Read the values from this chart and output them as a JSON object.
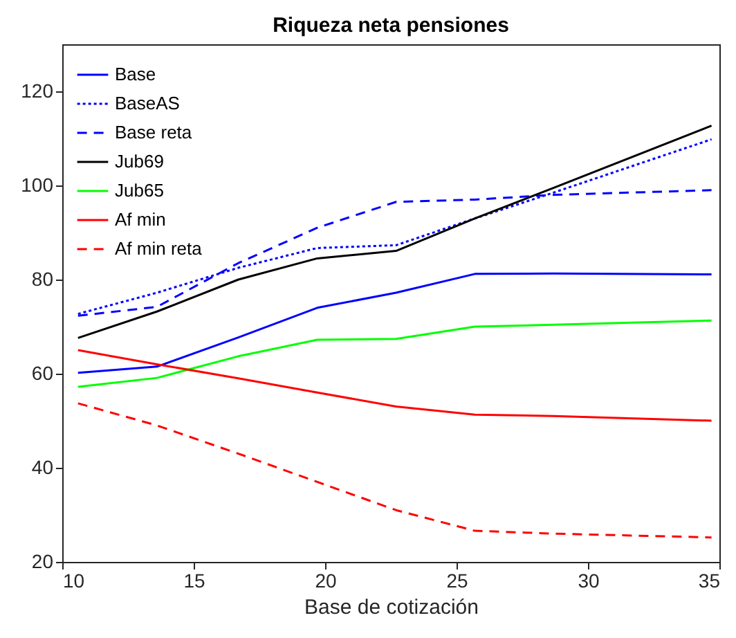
{
  "chart_data": {
    "type": "line",
    "title": "Riqueza neta pensiones",
    "xlabel": "Base de cotización",
    "x": [
      10.6,
      13.6,
      16.7,
      19.7,
      22.7,
      25.7,
      28.7,
      34.7
    ],
    "xlim": [
      10,
      35
    ],
    "xticks": [
      10,
      15,
      20,
      25,
      30,
      35
    ],
    "ylim": [
      20,
      130
    ],
    "yticks": [
      20,
      40,
      60,
      80,
      100,
      120
    ],
    "grid": false,
    "legend": "top left",
    "marker": "none",
    "series": [
      {
        "name": "Base",
        "color": "#0000ff",
        "line_style": "solid",
        "values": [
          60.2,
          61.5,
          67.7,
          74,
          77.2,
          81.2,
          81.3,
          81.1
        ]
      },
      {
        "name": "BaseAS",
        "color": "#0000ff",
        "line_style": "dotted",
        "values": [
          72.7,
          77.2,
          82.5,
          86.7,
          87.3,
          93,
          98.5,
          109.8
        ]
      },
      {
        "name": "Base reta",
        "color": "#0000ff",
        "line_style": "dashed",
        "values": [
          72.3,
          74.2,
          83.5,
          91,
          96.5,
          97,
          98,
          99
        ]
      },
      {
        "name": "Jub69",
        "color": "#000000",
        "line_style": "solid",
        "values": [
          67.6,
          73.2,
          80,
          84.5,
          86.1,
          93,
          99.5,
          112.7
        ]
      },
      {
        "name": "Jub65",
        "color": "#00ff00",
        "line_style": "solid",
        "values": [
          57.2,
          59.1,
          63.7,
          67.2,
          67.4,
          70,
          70.4,
          71.3
        ]
      },
      {
        "name": "Af min",
        "color": "#ff0000",
        "line_style": "solid",
        "values": [
          65,
          62,
          59,
          56,
          53,
          51.3,
          51,
          50
        ]
      },
      {
        "name": "Af min reta",
        "color": "#ff0000",
        "line_style": "dashed",
        "values": [
          53.7,
          49,
          43,
          37,
          31,
          26.6,
          26,
          25.2
        ]
      }
    ]
  }
}
